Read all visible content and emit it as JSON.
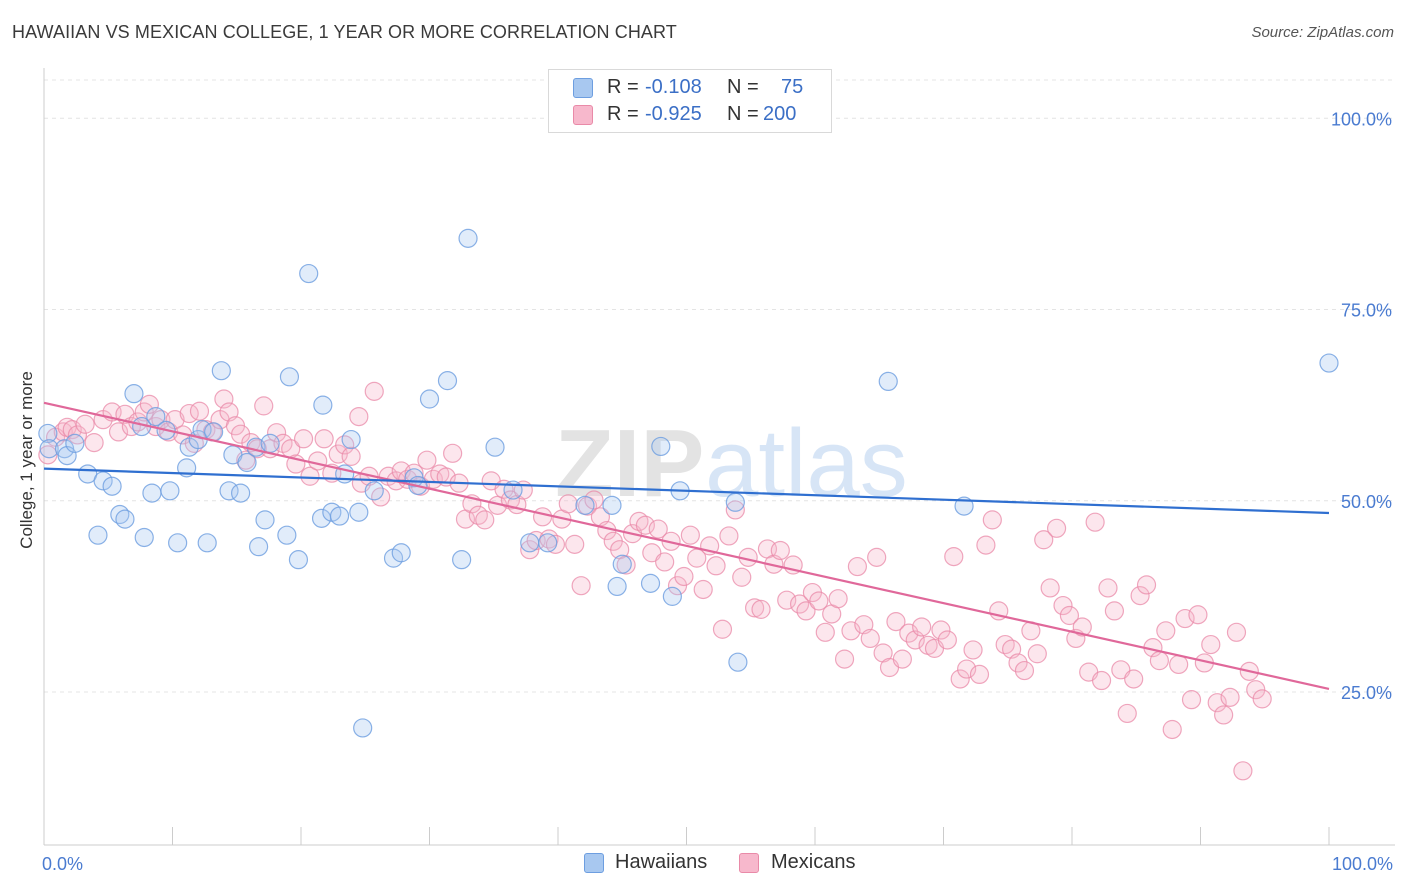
{
  "header": {
    "title": "HAWAIIAN VS MEXICAN COLLEGE, 1 YEAR OR MORE CORRELATION CHART",
    "source": "Source: ZipAtlas.com"
  },
  "watermark": {
    "part1": "ZIP",
    "part2": "atlas"
  },
  "legend": {
    "rows": [
      {
        "r_label": "R =",
        "r_value": "-0.108",
        "n_label": "N =",
        "n_value": "75",
        "color": "#a8c8f0",
        "border": "#6d9ee0"
      },
      {
        "r_label": "R =",
        "r_value": "-0.925",
        "n_label": "N =",
        "n_value": "200",
        "color": "#f7b8cc",
        "border": "#e98aa8"
      }
    ]
  },
  "bottom_legend": {
    "items": [
      "Hawaiians",
      "Mexicans"
    ]
  },
  "chart_data": {
    "type": "scatter",
    "title": "HAWAIIAN VS MEXICAN COLLEGE, 1 YEAR OR MORE CORRELATION CHART",
    "xlabel": "",
    "ylabel": "College, 1 year or more",
    "xlim": [
      0,
      100
    ],
    "ylim": [
      5,
      105
    ],
    "x_ticks": [
      "0.0%",
      "100.0%"
    ],
    "y_ticks": [
      {
        "value": 25,
        "label": "25.0%"
      },
      {
        "value": 50,
        "label": "50.0%"
      },
      {
        "value": 75,
        "label": "75.0%"
      },
      {
        "value": 100,
        "label": "100.0%"
      }
    ],
    "grid": true,
    "colors": {
      "hawaiians": "#6d9ee0",
      "hawaiians_line": "#2f6fd0",
      "mexicans": "#e98aa8",
      "mexicans_line": "#e0689a"
    },
    "series": [
      {
        "name": "Hawaiians",
        "trend": {
          "x": [
            0,
            100
          ],
          "y": [
            54.2,
            48.4
          ]
        },
        "points": [
          [
            0.3,
            58.8
          ],
          [
            0.4,
            56.8
          ],
          [
            1.6,
            56.8
          ],
          [
            1.8,
            55.9
          ],
          [
            2.4,
            57.5
          ],
          [
            3.4,
            53.5
          ],
          [
            4.2,
            45.5
          ],
          [
            4.6,
            52.6
          ],
          [
            5.3,
            51.9
          ],
          [
            5.9,
            48.2
          ],
          [
            6.3,
            47.6
          ],
          [
            7.0,
            64.0
          ],
          [
            7.6,
            59.7
          ],
          [
            7.8,
            45.2
          ],
          [
            8.4,
            51.0
          ],
          [
            8.7,
            61.0
          ],
          [
            9.5,
            59.2
          ],
          [
            9.8,
            51.3
          ],
          [
            10.4,
            44.5
          ],
          [
            11.1,
            54.3
          ],
          [
            11.3,
            57.0
          ],
          [
            12.0,
            58.0
          ],
          [
            12.3,
            59.3
          ],
          [
            12.7,
            44.5
          ],
          [
            13.2,
            59.0
          ],
          [
            13.8,
            67.0
          ],
          [
            14.4,
            51.3
          ],
          [
            14.7,
            56.0
          ],
          [
            15.3,
            51.0
          ],
          [
            15.8,
            55.0
          ],
          [
            16.5,
            57.0
          ],
          [
            16.7,
            44.0
          ],
          [
            17.2,
            47.5
          ],
          [
            17.6,
            57.5
          ],
          [
            18.9,
            45.5
          ],
          [
            19.1,
            66.2
          ],
          [
            19.8,
            42.3
          ],
          [
            20.6,
            79.7
          ],
          [
            21.6,
            47.7
          ],
          [
            21.7,
            62.5
          ],
          [
            22.4,
            48.5
          ],
          [
            23.0,
            48.0
          ],
          [
            23.4,
            53.5
          ],
          [
            23.9,
            58.0
          ],
          [
            24.5,
            48.5
          ],
          [
            24.8,
            20.3
          ],
          [
            25.7,
            51.3
          ],
          [
            27.2,
            42.5
          ],
          [
            27.8,
            43.2
          ],
          [
            28.8,
            53.0
          ],
          [
            29.1,
            52.0
          ],
          [
            30.0,
            63.3
          ],
          [
            31.4,
            65.7
          ],
          [
            32.5,
            42.3
          ],
          [
            33.0,
            84.3
          ],
          [
            35.1,
            57.0
          ],
          [
            36.5,
            51.4
          ],
          [
            37.8,
            44.5
          ],
          [
            39.2,
            44.5
          ],
          [
            42.1,
            49.4
          ],
          [
            44.2,
            49.4
          ],
          [
            44.6,
            38.8
          ],
          [
            45.0,
            41.7
          ],
          [
            47.2,
            39.2
          ],
          [
            48.0,
            57.1
          ],
          [
            48.9,
            37.5
          ],
          [
            49.5,
            51.3
          ],
          [
            53.8,
            49.8
          ],
          [
            54.0,
            28.9
          ],
          [
            65.7,
            65.6
          ],
          [
            71.6,
            49.3
          ],
          [
            100.0,
            68.0
          ]
        ]
      },
      {
        "name": "Mexicans",
        "trend": {
          "x": [
            0,
            100
          ],
          "y": [
            62.8,
            25.4
          ]
        },
        "points": [
          [
            0.3,
            56.0
          ],
          [
            0.9,
            58.3
          ],
          [
            1.5,
            59.0
          ],
          [
            1.8,
            59.6
          ],
          [
            2.2,
            59.3
          ],
          [
            2.6,
            58.6
          ],
          [
            3.2,
            60.0
          ],
          [
            3.9,
            57.6
          ],
          [
            4.6,
            60.6
          ],
          [
            5.3,
            61.6
          ],
          [
            5.8,
            59.0
          ],
          [
            6.3,
            61.3
          ],
          [
            6.8,
            59.7
          ],
          [
            7.3,
            60.3
          ],
          [
            7.8,
            61.6
          ],
          [
            8.2,
            62.6
          ],
          [
            8.7,
            59.7
          ],
          [
            9.1,
            60.6
          ],
          [
            9.7,
            59.0
          ],
          [
            10.2,
            60.6
          ],
          [
            10.8,
            58.6
          ],
          [
            11.3,
            61.4
          ],
          [
            11.7,
            57.5
          ],
          [
            12.1,
            61.7
          ],
          [
            12.6,
            59.3
          ],
          [
            13.1,
            59.0
          ],
          [
            13.7,
            60.6
          ],
          [
            14.0,
            63.3
          ],
          [
            14.4,
            61.6
          ],
          [
            14.9,
            59.8
          ],
          [
            15.3,
            58.7
          ],
          [
            15.7,
            55.3
          ],
          [
            16.1,
            57.6
          ],
          [
            16.6,
            56.8
          ],
          [
            17.1,
            62.4
          ],
          [
            17.6,
            56.8
          ],
          [
            18.1,
            58.9
          ],
          [
            18.6,
            57.5
          ],
          [
            19.2,
            56.8
          ],
          [
            19.6,
            54.8
          ],
          [
            20.2,
            58.1
          ],
          [
            20.7,
            53.2
          ],
          [
            21.3,
            55.2
          ],
          [
            21.8,
            58.1
          ],
          [
            22.4,
            53.6
          ],
          [
            22.9,
            56.1
          ],
          [
            23.4,
            57.3
          ],
          [
            23.9,
            55.8
          ],
          [
            24.5,
            61.0
          ],
          [
            24.7,
            52.3
          ],
          [
            25.3,
            53.2
          ],
          [
            25.7,
            64.3
          ],
          [
            26.2,
            50.5
          ],
          [
            26.8,
            53.2
          ],
          [
            27.4,
            52.6
          ],
          [
            27.8,
            53.9
          ],
          [
            28.3,
            52.8
          ],
          [
            28.8,
            53.6
          ],
          [
            29.3,
            51.9
          ],
          [
            29.8,
            55.3
          ],
          [
            30.3,
            52.8
          ],
          [
            30.8,
            53.5
          ],
          [
            31.3,
            53.1
          ],
          [
            31.8,
            56.2
          ],
          [
            32.3,
            52.3
          ],
          [
            32.8,
            47.6
          ],
          [
            33.3,
            49.6
          ],
          [
            33.8,
            48.1
          ],
          [
            34.3,
            47.5
          ],
          [
            34.8,
            52.6
          ],
          [
            35.3,
            49.4
          ],
          [
            35.8,
            51.5
          ],
          [
            36.3,
            50.1
          ],
          [
            36.8,
            49.5
          ],
          [
            37.3,
            51.4
          ],
          [
            37.8,
            43.6
          ],
          [
            38.3,
            44.8
          ],
          [
            38.8,
            47.9
          ],
          [
            39.3,
            45.0
          ],
          [
            39.8,
            44.3
          ],
          [
            40.3,
            47.6
          ],
          [
            40.8,
            49.6
          ],
          [
            41.3,
            44.3
          ],
          [
            41.8,
            38.9
          ],
          [
            42.3,
            49.3
          ],
          [
            42.8,
            50.1
          ],
          [
            43.3,
            47.9
          ],
          [
            43.8,
            46.1
          ],
          [
            44.3,
            44.7
          ],
          [
            44.8,
            43.6
          ],
          [
            45.3,
            41.6
          ],
          [
            45.8,
            45.7
          ],
          [
            46.3,
            47.3
          ],
          [
            46.8,
            46.8
          ],
          [
            47.3,
            43.2
          ],
          [
            47.8,
            46.3
          ],
          [
            48.3,
            42.0
          ],
          [
            48.8,
            44.7
          ],
          [
            49.3,
            38.9
          ],
          [
            49.8,
            40.1
          ],
          [
            50.3,
            45.5
          ],
          [
            50.8,
            42.5
          ],
          [
            51.3,
            38.4
          ],
          [
            51.8,
            44.1
          ],
          [
            52.3,
            41.5
          ],
          [
            52.8,
            33.2
          ],
          [
            53.3,
            45.4
          ],
          [
            53.8,
            48.8
          ],
          [
            54.3,
            40.0
          ],
          [
            54.8,
            42.6
          ],
          [
            55.3,
            36.0
          ],
          [
            55.8,
            35.8
          ],
          [
            56.3,
            43.7
          ],
          [
            56.8,
            41.7
          ],
          [
            57.3,
            43.5
          ],
          [
            57.8,
            37.0
          ],
          [
            58.3,
            41.6
          ],
          [
            58.8,
            36.5
          ],
          [
            59.3,
            35.6
          ],
          [
            59.8,
            38.0
          ],
          [
            60.3,
            36.9
          ],
          [
            60.8,
            32.8
          ],
          [
            61.3,
            35.2
          ],
          [
            61.8,
            37.2
          ],
          [
            62.3,
            29.3
          ],
          [
            62.8,
            33.0
          ],
          [
            63.3,
            41.4
          ],
          [
            63.8,
            33.8
          ],
          [
            64.3,
            32.0
          ],
          [
            64.8,
            42.6
          ],
          [
            65.3,
            30.1
          ],
          [
            65.8,
            28.2
          ],
          [
            66.3,
            34.2
          ],
          [
            66.8,
            29.3
          ],
          [
            67.3,
            32.7
          ],
          [
            67.8,
            31.8
          ],
          [
            68.3,
            33.5
          ],
          [
            68.8,
            31.1
          ],
          [
            69.3,
            30.7
          ],
          [
            69.8,
            33.1
          ],
          [
            70.3,
            31.8
          ],
          [
            70.8,
            42.7
          ],
          [
            71.3,
            26.7
          ],
          [
            71.8,
            28.0
          ],
          [
            72.3,
            30.5
          ],
          [
            72.8,
            27.3
          ],
          [
            73.3,
            44.2
          ],
          [
            73.8,
            47.5
          ],
          [
            74.3,
            35.6
          ],
          [
            74.8,
            31.2
          ],
          [
            75.3,
            30.6
          ],
          [
            75.8,
            28.8
          ],
          [
            76.3,
            27.8
          ],
          [
            76.8,
            33.0
          ],
          [
            77.3,
            30.0
          ],
          [
            77.8,
            44.9
          ],
          [
            78.3,
            38.6
          ],
          [
            78.8,
            46.4
          ],
          [
            79.3,
            36.3
          ],
          [
            79.8,
            35.0
          ],
          [
            80.3,
            32.0
          ],
          [
            80.8,
            33.5
          ],
          [
            81.3,
            27.6
          ],
          [
            81.8,
            47.2
          ],
          [
            82.3,
            26.5
          ],
          [
            82.8,
            38.6
          ],
          [
            83.3,
            35.6
          ],
          [
            83.8,
            27.9
          ],
          [
            84.3,
            22.2
          ],
          [
            84.8,
            26.7
          ],
          [
            85.3,
            37.6
          ],
          [
            85.8,
            39.0
          ],
          [
            86.3,
            30.8
          ],
          [
            86.8,
            29.1
          ],
          [
            87.3,
            33.0
          ],
          [
            87.8,
            20.1
          ],
          [
            88.3,
            28.6
          ],
          [
            88.8,
            34.6
          ],
          [
            89.3,
            24.0
          ],
          [
            89.8,
            35.1
          ],
          [
            90.3,
            28.8
          ],
          [
            90.8,
            31.2
          ],
          [
            91.3,
            23.6
          ],
          [
            91.8,
            22.0
          ],
          [
            92.3,
            24.3
          ],
          [
            92.8,
            32.8
          ],
          [
            93.3,
            14.7
          ],
          [
            93.8,
            27.7
          ],
          [
            94.3,
            25.3
          ],
          [
            94.8,
            24.1
          ]
        ]
      }
    ]
  }
}
